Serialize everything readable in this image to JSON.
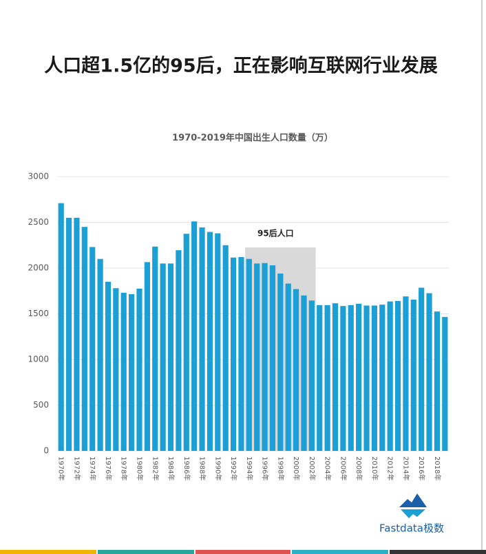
{
  "header": {
    "title": "人口超1.5亿的95后，正在影响互联网行业发展"
  },
  "chart_data": {
    "type": "bar",
    "title": "1970-2019年中国出生人口数量（万）",
    "categories": [
      "1970年",
      null,
      "1972年",
      null,
      "1974年",
      null,
      "1976年",
      null,
      "1978年",
      null,
      "1980年",
      null,
      "1982年",
      null,
      "1984年",
      null,
      "1986年",
      null,
      "1988年",
      null,
      "1990年",
      null,
      "1992年",
      null,
      "1994年",
      null,
      "1996年",
      null,
      "1998年",
      null,
      "2000年",
      null,
      "2002年",
      null,
      "2004年",
      null,
      "2006年",
      null,
      "2008年",
      null,
      "2010年",
      null,
      "2012年",
      null,
      "2014年",
      null,
      "2016年",
      null,
      "2018年",
      null
    ],
    "values": [
      2710,
      2550,
      2550,
      2450,
      2230,
      2100,
      1850,
      1780,
      1730,
      1715,
      1775,
      2065,
      2235,
      2050,
      2050,
      2195,
      2375,
      2510,
      2445,
      2395,
      2380,
      2250,
      2115,
      2120,
      2100,
      2050,
      2055,
      2030,
      1940,
      1830,
      1770,
      1700,
      1645,
      1595,
      1595,
      1615,
      1585,
      1595,
      1610,
      1590,
      1590,
      1600,
      1635,
      1640,
      1690,
      1655,
      1785,
      1725,
      1525,
      1465
    ],
    "color": "#1b9fd5",
    "ylim": [
      0,
      3000
    ],
    "yticks": [
      0,
      500,
      1000,
      1500,
      2000,
      2500,
      3000
    ],
    "grid": true,
    "highlight": {
      "label": "95后人口",
      "from": "1994年",
      "to": "2002年",
      "top": 2225,
      "color": "#d9d9d9"
    }
  },
  "footer": {
    "brand": "Fastdata极数"
  }
}
